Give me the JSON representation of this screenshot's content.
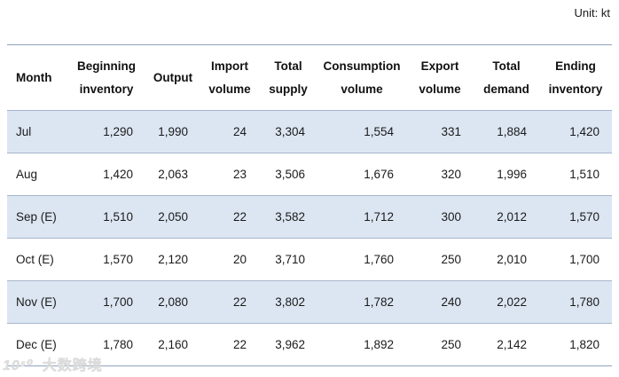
{
  "unit_label": "Unit: kt",
  "watermark": {
    "logo": "10⁵⁰",
    "text": "大数跨境"
  },
  "colors": {
    "stripe_row_bg": "#dce6f2",
    "row_border": "#a6b5cd",
    "outer_border": "#8fa3bd",
    "text": "#1a1a1a",
    "watermark": "#dcdcdc"
  },
  "table": {
    "headers": [
      {
        "id": "month",
        "lines": [
          "Month"
        ]
      },
      {
        "id": "beginning-inventory",
        "lines": [
          "Beginning",
          "inventory"
        ]
      },
      {
        "id": "output",
        "lines": [
          "Output"
        ]
      },
      {
        "id": "import-volume",
        "lines": [
          "Import",
          "volume"
        ]
      },
      {
        "id": "total-supply",
        "lines": [
          "Total",
          "supply"
        ]
      },
      {
        "id": "consumption-volume",
        "lines": [
          "Consumption",
          "volume"
        ]
      },
      {
        "id": "export-volume",
        "lines": [
          "Export",
          "volume"
        ]
      },
      {
        "id": "total-demand",
        "lines": [
          "Total",
          "demand"
        ]
      },
      {
        "id": "ending-inventory",
        "lines": [
          "Ending",
          "inventory"
        ]
      }
    ],
    "rows": [
      {
        "month": "Jul",
        "values": [
          "1,290",
          "1,990",
          "24",
          "3,304",
          "1,554",
          "331",
          "1,884",
          "1,420"
        ]
      },
      {
        "month": "Aug",
        "values": [
          "1,420",
          "2,063",
          "23",
          "3,506",
          "1,676",
          "320",
          "1,996",
          "1,510"
        ]
      },
      {
        "month": "Sep (E)",
        "values": [
          "1,510",
          "2,050",
          "22",
          "3,582",
          "1,712",
          "300",
          "2,012",
          "1,570"
        ]
      },
      {
        "month": "Oct (E)",
        "values": [
          "1,570",
          "2,120",
          "20",
          "3,710",
          "1,760",
          "250",
          "2,010",
          "1,700"
        ]
      },
      {
        "month": "Nov (E)",
        "values": [
          "1,700",
          "2,080",
          "22",
          "3,802",
          "1,782",
          "240",
          "2,022",
          "1,780"
        ]
      },
      {
        "month": "Dec (E)",
        "values": [
          "1,780",
          "2,160",
          "22",
          "3,962",
          "1,892",
          "250",
          "2,142",
          "1,820"
        ]
      }
    ]
  },
  "chart_data": {
    "type": "table",
    "title": "",
    "unit": "kt",
    "columns": [
      "Month",
      "Beginning inventory",
      "Output",
      "Import volume",
      "Total supply",
      "Consumption volume",
      "Export volume",
      "Total demand",
      "Ending inventory"
    ],
    "rows": [
      [
        "Jul",
        1290,
        1990,
        24,
        3304,
        1554,
        331,
        1884,
        1420
      ],
      [
        "Aug",
        1420,
        2063,
        23,
        3506,
        1676,
        320,
        1996,
        1510
      ],
      [
        "Sep (E)",
        1510,
        2050,
        22,
        3582,
        1712,
        300,
        2012,
        1570
      ],
      [
        "Oct (E)",
        1570,
        2120,
        20,
        3710,
        1760,
        250,
        2010,
        1700
      ],
      [
        "Nov (E)",
        1700,
        2080,
        22,
        3802,
        1782,
        240,
        2022,
        1780
      ],
      [
        "Dec (E)",
        1780,
        2160,
        22,
        3962,
        1892,
        250,
        2142,
        1820
      ]
    ],
    "layout_hints": {
      "striped_rows": [
        0,
        2,
        4
      ],
      "stripe_color": "#dce6f2",
      "numbers_right_aligned": true,
      "unit_label_position": "top-right"
    }
  }
}
